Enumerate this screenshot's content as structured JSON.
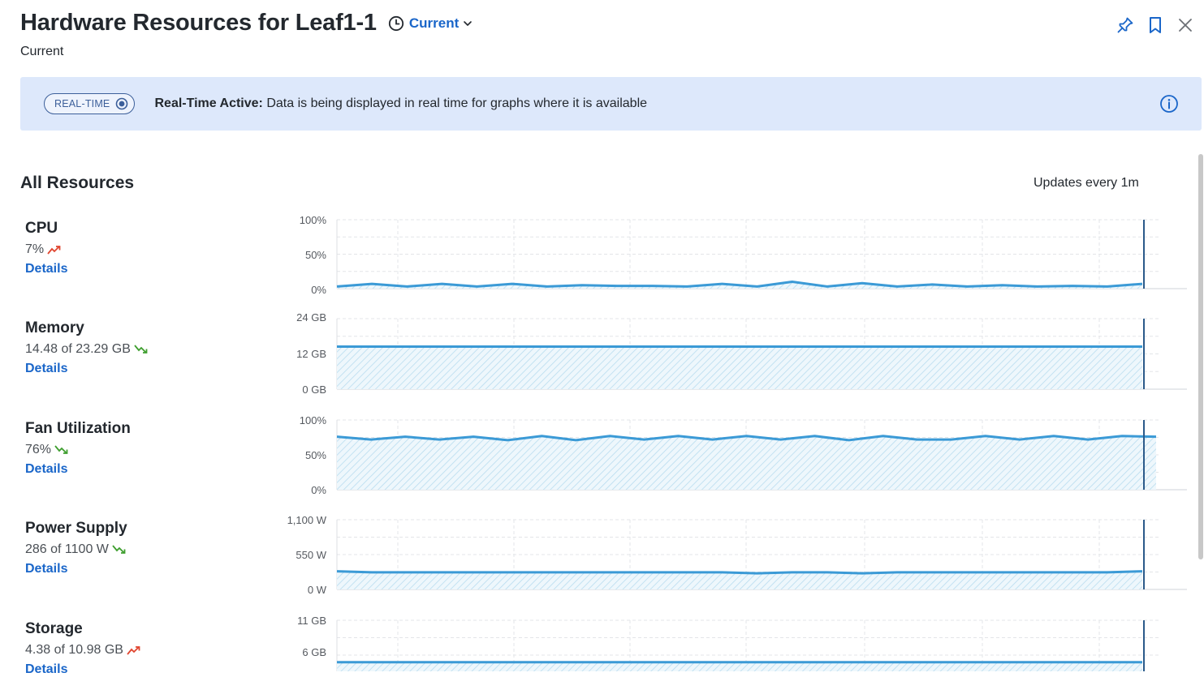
{
  "header": {
    "title": "Hardware Resources for Leaf1-1",
    "time_selector_label": "Current",
    "subtitle": "Current",
    "icons": [
      "pin-icon",
      "bookmark-icon",
      "close-icon"
    ]
  },
  "banner": {
    "pill_label": "REAL-TIME",
    "headline": "Real-Time Active:",
    "message": "Data is being displayed in real time for graphs where it is available",
    "bg_color": "#dde8fb"
  },
  "section": {
    "title": "All Resources",
    "updates": "Updates every 1m"
  },
  "colors": {
    "accent": "#1a66c9",
    "line": "#3b9ad6",
    "trend_up": "#e0452f",
    "trend_down": "#3e9e2e",
    "marker": "#2b5a8a"
  },
  "resources": [
    {
      "name": "CPU",
      "value": "7%",
      "trend": "up",
      "details_label": "Details",
      "y_ticks": [
        "100%",
        "50%",
        "0%"
      ]
    },
    {
      "name": "Memory",
      "value": "14.48 of 23.29 GB",
      "trend": "down",
      "details_label": "Details",
      "y_ticks": [
        "24 GB",
        "12 GB",
        "0 GB"
      ]
    },
    {
      "name": "Fan Utilization",
      "value": "76%",
      "trend": "down",
      "details_label": "Details",
      "y_ticks": [
        "100%",
        "50%",
        "0%"
      ]
    },
    {
      "name": "Power Supply",
      "value": "286 of 1100 W",
      "trend": "down",
      "details_label": "Details",
      "y_ticks": [
        "1,100 W",
        "550 W",
        "0 W"
      ]
    },
    {
      "name": "Storage",
      "value": "4.38 of 10.98 GB",
      "trend": "up",
      "details_label": "Details",
      "y_ticks": [
        "11 GB",
        "6 GB"
      ]
    }
  ],
  "chart_data": [
    {
      "type": "area",
      "title": "CPU",
      "ylim": [
        0,
        100
      ],
      "y_ticks": [
        "100%",
        "50%",
        "0%"
      ],
      "grid": true,
      "values": [
        3,
        7,
        3,
        7,
        3,
        7,
        3,
        5,
        4,
        4,
        3,
        7,
        3,
        10,
        3,
        8,
        3,
        6,
        3,
        5,
        3,
        4,
        3,
        7
      ]
    },
    {
      "type": "area",
      "title": "Memory",
      "ylim": [
        0,
        24
      ],
      "y_ticks": [
        "24 GB",
        "12 GB",
        "0 GB"
      ],
      "grid": true,
      "values": [
        14.48,
        14.48,
        14.48,
        14.48,
        14.48,
        14.48,
        14.48,
        14.48,
        14.48,
        14.48,
        14.48,
        14.48,
        14.48,
        14.48,
        14.48,
        14.48,
        14.48,
        14.48,
        14.48,
        14.48,
        14.48,
        14.48,
        14.48,
        14.48
      ]
    },
    {
      "type": "area",
      "title": "Fan Utilization",
      "ylim": [
        0,
        100
      ],
      "y_ticks": [
        "100%",
        "50%",
        "0%"
      ],
      "grid": true,
      "values": [
        76,
        72,
        76,
        72,
        76,
        71,
        77,
        71,
        77,
        72,
        77,
        72,
        77,
        72,
        77,
        71,
        77,
        72,
        72,
        77,
        72,
        77,
        72,
        77,
        76
      ]
    },
    {
      "type": "area",
      "title": "Power Supply",
      "ylim": [
        0,
        1100
      ],
      "y_ticks": [
        "1,100 W",
        "550 W",
        "0 W"
      ],
      "grid": true,
      "values": [
        286,
        270,
        270,
        270,
        270,
        270,
        270,
        270,
        270,
        270,
        270,
        270,
        255,
        270,
        270,
        255,
        270,
        270,
        270,
        270,
        270,
        270,
        270,
        286
      ]
    },
    {
      "type": "area",
      "title": "Storage",
      "ylim": [
        0,
        11
      ],
      "y_ticks": [
        "11 GB",
        "6 GB"
      ],
      "grid": true,
      "values": [
        4.38,
        4.38,
        4.38,
        4.38,
        4.38,
        4.38,
        4.38,
        4.38,
        4.38,
        4.38,
        4.38,
        4.38,
        4.38,
        4.38,
        4.38,
        4.38,
        4.38,
        4.38,
        4.38,
        4.38,
        4.38,
        4.38,
        4.38,
        4.38
      ]
    }
  ]
}
